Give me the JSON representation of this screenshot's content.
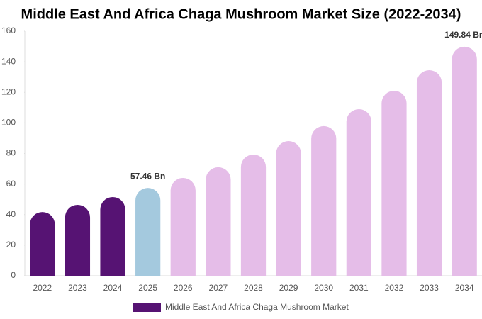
{
  "chart_data": {
    "type": "bar",
    "title": "Middle East And Africa Chaga Mushroom Market Size (2022-2034)",
    "categories": [
      "2022",
      "2023",
      "2024",
      "2025",
      "2026",
      "2027",
      "2028",
      "2029",
      "2030",
      "2031",
      "2032",
      "2033",
      "2034"
    ],
    "series": [
      {
        "name": "Middle East And Africa Chaga Mushroom Market",
        "color": "#561373",
        "values": [
          41.7,
          46.4,
          51.5,
          57.46,
          64,
          71,
          79.3,
          88.1,
          97.9,
          109,
          121,
          134.5,
          149.84
        ],
        "value_labels": [
          null,
          null,
          null,
          "57.46 Bn",
          null,
          null,
          null,
          null,
          null,
          null,
          null,
          null,
          "149.84 Bn"
        ],
        "colors": [
          "#561373",
          "#561373",
          "#561373",
          "#a4c9de",
          "#e5bde8",
          "#e5bde8",
          "#e5bde8",
          "#e5bde8",
          "#e5bde8",
          "#e5bde8",
          "#e5bde8",
          "#e5bde8",
          "#e5bde8"
        ]
      }
    ],
    "ylim": [
      0,
      160
    ],
    "yticks": [
      0,
      20,
      40,
      60,
      80,
      100,
      120,
      140,
      160
    ],
    "grid": false
  }
}
